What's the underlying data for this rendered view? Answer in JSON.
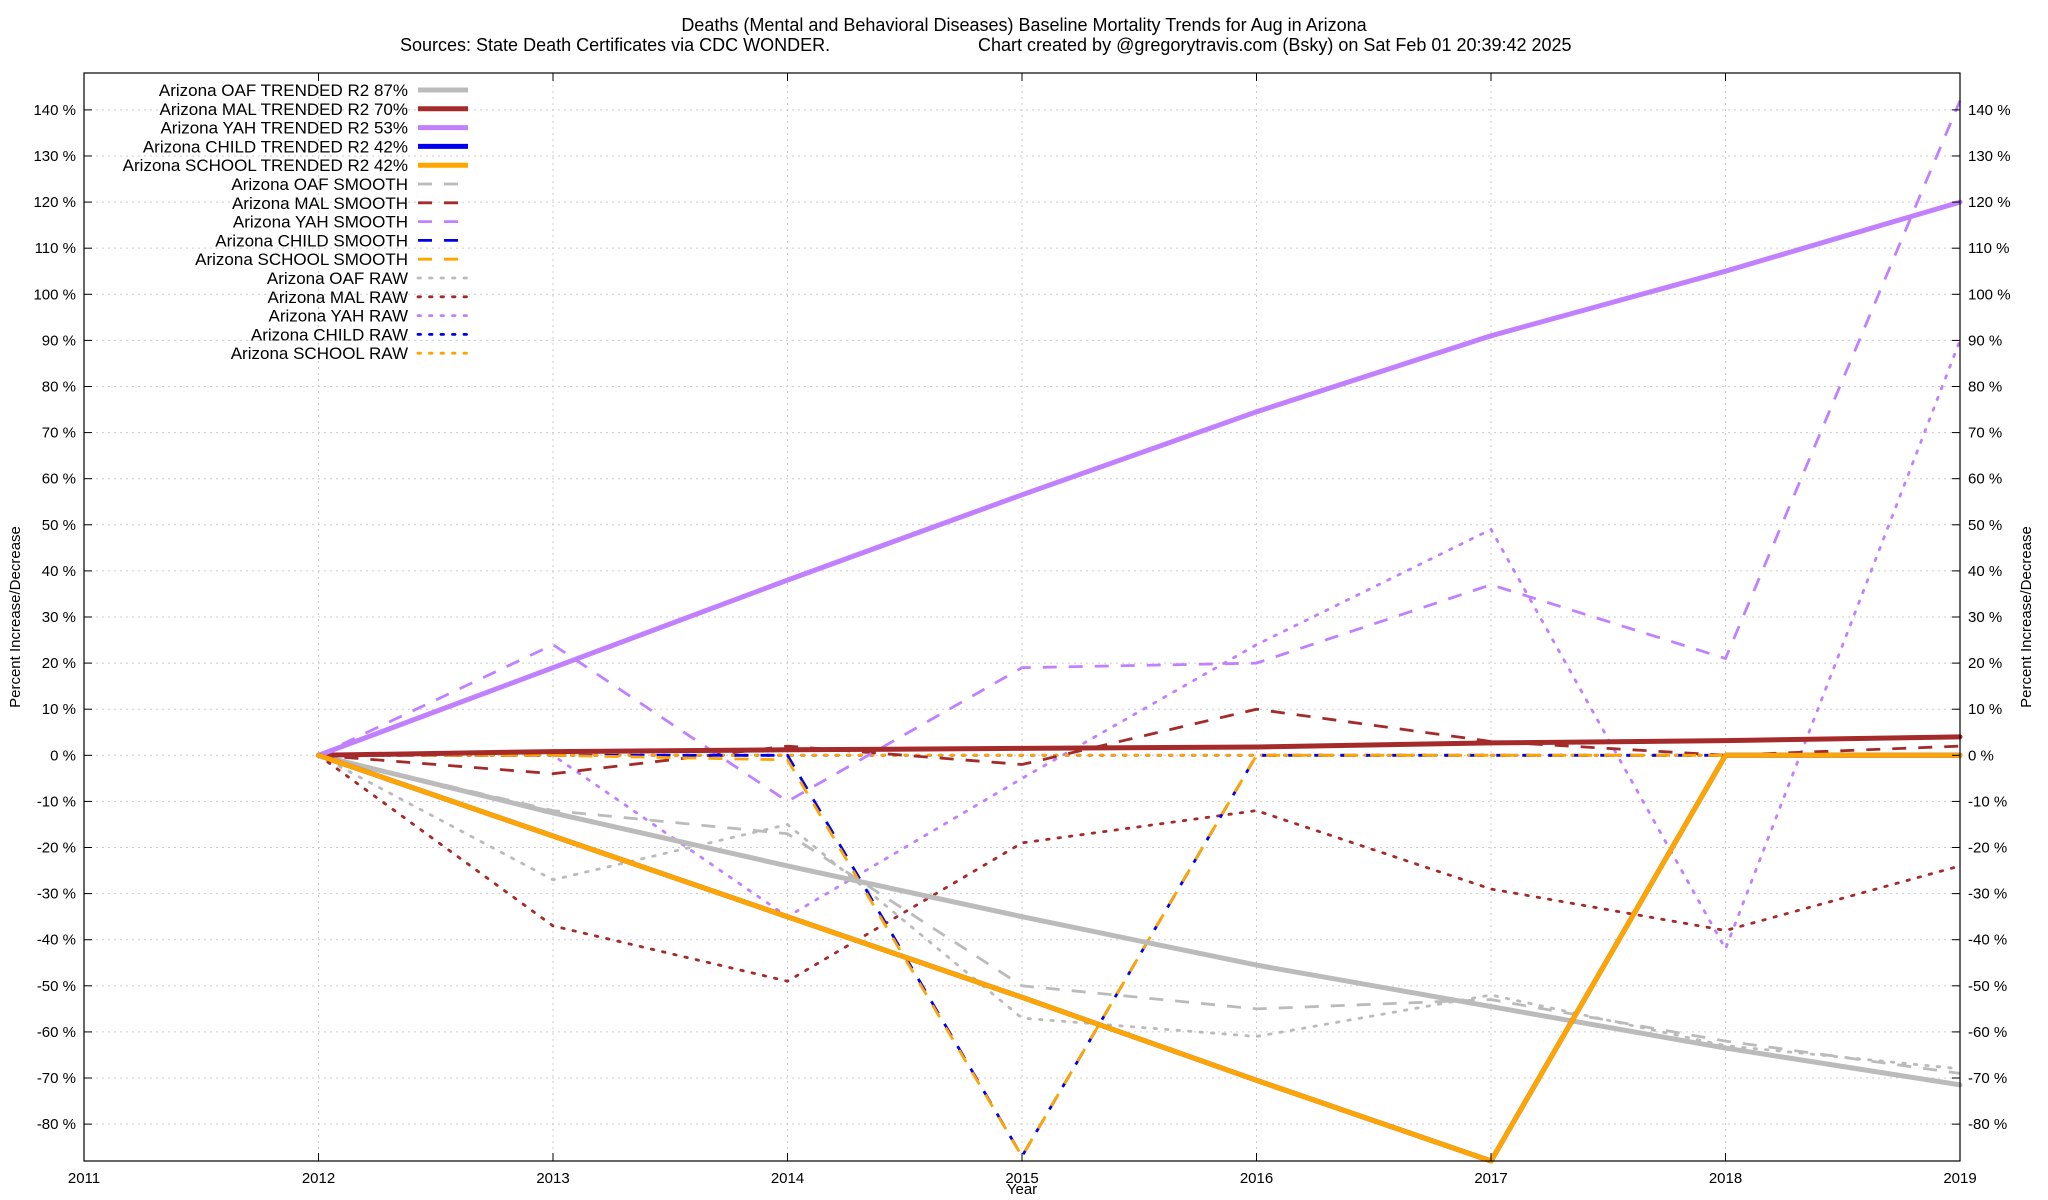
{
  "chart_data": {
    "type": "line",
    "title": "Deaths (Mental and Behavioral Diseases)  Baseline Mortality Trends for Aug in Arizona",
    "subtitle_left": "Sources: State Death Certificates via CDC WONDER.",
    "subtitle_right": "Chart created by @gregorytravis.com (Bsky) on Sat Feb 01 20:39:42 2025",
    "xlabel": "Year",
    "ylabel_left": "Percent Increase/Decrease",
    "ylabel_right": "Percent Increase/Decrease",
    "xlim": [
      2011,
      2019
    ],
    "ylim": [
      -88,
      148
    ],
    "x_ticks": [
      "2011",
      "2012",
      "2013",
      "2014",
      "2015",
      "2016",
      "2017",
      "2018",
      "2019"
    ],
    "y_ticks": [
      {
        "value": 140,
        "label": "140 %"
      },
      {
        "value": 130,
        "label": "130 %"
      },
      {
        "value": 120,
        "label": "120 %"
      },
      {
        "value": 110,
        "label": "110 %"
      },
      {
        "value": 100,
        "label": "100 %"
      },
      {
        "value": 90,
        "label": "90 %"
      },
      {
        "value": 80,
        "label": "80 %"
      },
      {
        "value": 70,
        "label": "70 %"
      },
      {
        "value": 60,
        "label": "60 %"
      },
      {
        "value": 50,
        "label": "50 %"
      },
      {
        "value": 40,
        "label": "40 %"
      },
      {
        "value": 30,
        "label": "30 %"
      },
      {
        "value": 20,
        "label": "20 %"
      },
      {
        "value": 10,
        "label": "10 %"
      },
      {
        "value": 0,
        "label": "0 %"
      },
      {
        "value": -10,
        "label": "-10 %"
      },
      {
        "value": -20,
        "label": "-20 %"
      },
      {
        "value": -30,
        "label": "-30 %"
      },
      {
        "value": -40,
        "label": "-40 %"
      },
      {
        "value": -50,
        "label": "-50 %"
      },
      {
        "value": -60,
        "label": "-60 %"
      },
      {
        "value": -70,
        "label": "-70 %"
      },
      {
        "value": -80,
        "label": "-80 %"
      }
    ],
    "grid": true,
    "legend_position": "top-left",
    "series": [
      {
        "name": "Arizona OAF TRENDED R2  87%",
        "color": "#bbbbbb",
        "style": "solid",
        "x": [
          2012,
          2013,
          2014,
          2015,
          2016,
          2017,
          2018,
          2019
        ],
        "y": [
          0,
          -12.5,
          -24,
          -35,
          -45.5,
          -54.5,
          -63.5,
          -71.5
        ]
      },
      {
        "name": "Arizona MAL TRENDED R2  70%",
        "color": "#a52a2a",
        "style": "solid",
        "x": [
          2012,
          2013,
          2014,
          2015,
          2016,
          2017,
          2018,
          2019
        ],
        "y": [
          0,
          0.8,
          1.2,
          1.5,
          1.8,
          2.7,
          3.2,
          4
        ]
      },
      {
        "name": "Arizona YAH TRENDED R2  53%",
        "color": "#c080ff",
        "style": "solid",
        "x": [
          2012,
          2013,
          2014,
          2015,
          2016,
          2017,
          2018,
          2019
        ],
        "y": [
          0,
          19,
          38,
          56.5,
          74.5,
          91,
          105,
          120
        ]
      },
      {
        "name": "Arizona CHILD TRENDED R2  42%",
        "color": "#0000ee",
        "style": "solid",
        "x": [
          2012,
          2013,
          2014,
          2015,
          2016,
          2017,
          2018,
          2019
        ],
        "y": [
          0,
          -17.5,
          -35,
          -52.5,
          -70.5,
          -88,
          0,
          0
        ]
      },
      {
        "name": "Arizona SCHOOL TRENDED R2  42%",
        "color": "#ffa500",
        "style": "solid",
        "x": [
          2012,
          2013,
          2014,
          2015,
          2016,
          2017,
          2018,
          2019
        ],
        "y": [
          0,
          -17.5,
          -35,
          -52.5,
          -70.5,
          -88,
          0,
          0
        ]
      },
      {
        "name": "Arizona OAF SMOOTH",
        "color": "#bbbbbb",
        "style": "dashed",
        "x": [
          2012,
          2013,
          2014,
          2015,
          2016,
          2017,
          2018,
          2019
        ],
        "y": [
          0,
          -12,
          -17,
          -50,
          -55,
          -53,
          -62,
          -69
        ]
      },
      {
        "name": "Arizona MAL SMOOTH",
        "color": "#a52a2a",
        "style": "dashed",
        "x": [
          2012,
          2013,
          2014,
          2015,
          2016,
          2017,
          2018,
          2019
        ],
        "y": [
          0,
          -4,
          2,
          -2,
          10,
          3,
          0,
          2
        ]
      },
      {
        "name": "Arizona YAH SMOOTH",
        "color": "#c080ff",
        "style": "dashed",
        "x": [
          2012,
          2013,
          2014,
          2015,
          2016,
          2017,
          2018,
          2019
        ],
        "y": [
          0,
          24,
          -10,
          19,
          20,
          37,
          21,
          142
        ]
      },
      {
        "name": "Arizona CHILD SMOOTH",
        "color": "#0000ee",
        "style": "dashed",
        "x": [
          2012,
          2013,
          2014,
          2015,
          2016,
          2017,
          2018,
          2019
        ],
        "y": [
          0,
          0,
          0,
          -87,
          0,
          0,
          0,
          0
        ]
      },
      {
        "name": "Arizona SCHOOL SMOOTH",
        "color": "#ffa500",
        "style": "dashed",
        "x": [
          2012,
          2013,
          2014,
          2015,
          2016,
          2017,
          2018,
          2019
        ],
        "y": [
          0,
          0,
          -1,
          -87,
          0,
          0,
          0,
          0
        ]
      },
      {
        "name": "Arizona OAF RAW",
        "color": "#bbbbbb",
        "style": "dotted",
        "x": [
          2012,
          2013,
          2014,
          2015,
          2016,
          2017,
          2018,
          2019
        ],
        "y": [
          0,
          -27,
          -15,
          -57,
          -61,
          -52,
          -63,
          -68
        ]
      },
      {
        "name": "Arizona MAL RAW",
        "color": "#a52a2a",
        "style": "dotted",
        "x": [
          2012,
          2013,
          2014,
          2015,
          2016,
          2017,
          2018,
          2019
        ],
        "y": [
          0,
          -37,
          -49,
          -19,
          -12,
          -29,
          -38,
          -24
        ]
      },
      {
        "name": "Arizona YAH RAW",
        "color": "#c080ff",
        "style": "dotted",
        "x": [
          2012,
          2013,
          2014,
          2015,
          2016,
          2017,
          2018,
          2019
        ],
        "y": [
          0,
          0,
          -35,
          -5,
          24,
          49,
          -42,
          90
        ]
      },
      {
        "name": "Arizona CHILD RAW",
        "color": "#0000ee",
        "style": "dotted",
        "x": [
          2012,
          2013,
          2014,
          2015,
          2016,
          2017,
          2018,
          2019
        ],
        "y": [
          0,
          0,
          0,
          0,
          0,
          0,
          0,
          0
        ]
      },
      {
        "name": "Arizona SCHOOL RAW",
        "color": "#ffa500",
        "style": "dotted",
        "x": [
          2012,
          2013,
          2014,
          2015,
          2016,
          2017,
          2018,
          2019
        ],
        "y": [
          0,
          0,
          0,
          0,
          0,
          0,
          0,
          0
        ]
      }
    ]
  }
}
